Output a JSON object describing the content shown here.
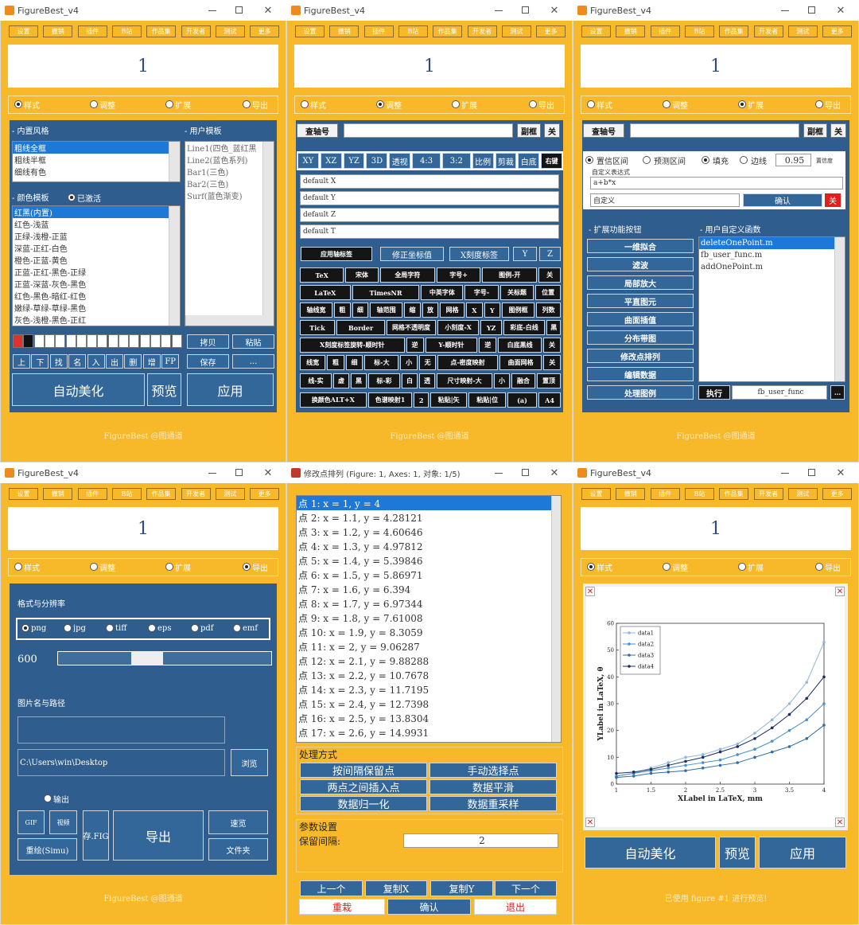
{
  "app_title": "FigureBest_v4",
  "toolbar": [
    "设置",
    "撤销",
    "插件",
    "B站",
    "作品集",
    "开发者",
    "测试",
    "更多"
  ],
  "display_value": "1",
  "tabs": [
    "样式",
    "调整",
    "扩展",
    "导出"
  ],
  "footer": "FigureBest @图通道",
  "style_panel": {
    "builtin_label": "- 内置风格",
    "builtin_styles": [
      "粗线全框",
      "粗线半框",
      "细线有色"
    ],
    "user_label": "- 用户模板",
    "user_templates": [
      "Line1(四色_蓝红黑",
      "Line2(蓝色系列)",
      "Bar1(三色)",
      "Bar2(三色)",
      "Surf(蓝色渐变)"
    ],
    "color_label": "- 颜色模板",
    "activated": "已激活",
    "color_templates": [
      "红黑(内置)",
      "红色-浅蓝",
      "正绿-浅橙-正蓝",
      "深蓝-正红-白色",
      "橙色-正蓝-黄色",
      "正蓝-正红-黑色-正绿",
      "正蓝-深蓝-灰色-黑色",
      "红色-黑色-暗红-红色",
      "嫩绿-草绿-草绿-黑色",
      "灰色-浅橙-黑色-正红"
    ],
    "list_buttons": [
      "上",
      "下",
      "找",
      "名",
      "入",
      "出",
      "删",
      "增",
      "FP"
    ],
    "side_buttons": [
      "拷贝",
      "粘贴",
      "保存",
      "..."
    ],
    "actions": [
      "自动美化",
      "预览",
      "应用"
    ]
  },
  "adjust_panel": {
    "axis_lookup": "查轴号",
    "sub_frame": "副框",
    "close": "关",
    "view_buttons": [
      "XY",
      "XZ",
      "YZ",
      "3D",
      "透视",
      "4:3",
      "3:2",
      "比例",
      "剪裁",
      "白底",
      "右键"
    ],
    "axis_labels": [
      "default X",
      "default Y",
      "default Z",
      "default T"
    ],
    "label_buttons": [
      "应用轴标签",
      "修正坐标值",
      "X刻度标签",
      "Y",
      "Z"
    ],
    "button_rows": [
      [
        "TeX",
        "宋体",
        "全局字符",
        "字号+",
        "图例-开",
        "关"
      ],
      [
        "LaTeX",
        "TimesNR",
        "中英字体",
        "字号-",
        "关标题",
        "位置"
      ],
      [
        "轴线宽",
        "粗",
        "细",
        "轴范围",
        "缩",
        "放",
        "网格",
        "X",
        "Y",
        "图例框",
        "列数"
      ],
      [
        "Tick",
        "Border",
        "网格不透明度",
        "小刻度-X",
        "YZ",
        "彩底-白线",
        "黑"
      ],
      [
        "X刻度标签旋转-顺时针",
        "逆",
        "Y-顺时针",
        "逆",
        "白底黑线",
        "关"
      ],
      [
        "线宽",
        "粗",
        "细",
        "标-大",
        "小",
        "无",
        "点-密度映射",
        "曲面网格",
        "关"
      ],
      [
        "线-实",
        "虚",
        "黑",
        "标-彩",
        "白",
        "透",
        "尺寸映射-大",
        "小",
        "融合",
        "置顶"
      ],
      [
        "换颜色ALT+X",
        "色谱映射1",
        "2",
        "粘贴|矢",
        "粘贴|位",
        "(a)",
        "A4"
      ]
    ]
  },
  "extend_panel": {
    "axis_lookup": "查轴号",
    "sub_frame": "副框",
    "close": "关",
    "band_options": [
      "置信区间",
      "预测区间",
      "填充",
      "边线"
    ],
    "confidence": "0.95",
    "confidence_label": "置信度",
    "expression_label": "自定义表达式",
    "expression": "a+b*x",
    "preset": "自定义",
    "confirm": "确认",
    "close_red": "关",
    "feature_label": "- 扩展功能按钮",
    "function_label": "- 用户自定义函数",
    "feature_buttons": [
      "一维拟合",
      "滤波",
      "局部放大",
      "平直图元",
      "曲面插值",
      "分布带图",
      "修改点排列",
      "编辑数据",
      "处理图例"
    ],
    "functions": [
      "deleteOnePoint.m",
      "fb_user_func.m",
      "addOnePoint.m"
    ],
    "run": "执行",
    "run_target": "fb_user_func",
    "more": "..."
  },
  "export_panel": {
    "format_label": "格式与分辨率",
    "formats": [
      "png",
      "jpg",
      "tiff",
      "eps",
      "pdf",
      "emf"
    ],
    "dpi": "600",
    "path_label": "图片名与路径",
    "path": "C:\\Users\\win\\Desktop",
    "browse": "浏览",
    "output": "输出",
    "buttons": [
      "GIF",
      "视频",
      "存.FIG",
      "导出",
      "速览",
      "重绘(Simu)",
      "文件夹"
    ]
  },
  "point_dialog": {
    "title": "修改点排列 (Figure: 1, Axes: 1, 对象: 1/5)",
    "points": [
      "点 1: x = 1, y = 4",
      "点 2: x = 1.1, y = 4.28121",
      "点 3: x = 1.2, y = 4.60646",
      "点 4: x = 1.3, y = 4.97812",
      "点 5: x = 1.4, y = 5.39846",
      "点 6: x = 1.5, y = 5.86971",
      "点 7: x = 1.6, y = 6.394",
      "点 8: x = 1.7, y = 6.97344",
      "点 9: x = 1.8, y = 7.61008",
      "点 10: x = 1.9, y = 8.3059",
      "点 11: x = 2, y = 9.06287",
      "点 12: x = 2.1, y = 9.88288",
      "点 13: x = 2.2, y = 10.7678",
      "点 14: x = 2.3, y = 11.7195",
      "点 15: x = 2.4, y = 12.7398",
      "点 16: x = 2.5, y = 13.8304",
      "点 17: x = 2.6, y = 14.9931"
    ],
    "method_label": "处理方式",
    "methods": [
      "按间隔保留点",
      "手动选择点",
      "两点之间插入点",
      "数据平滑",
      "数据归一化",
      "数据重采样"
    ],
    "param_label": "参数设置",
    "interval_label": "保留间隔:",
    "interval": "2",
    "nav": [
      "上一个",
      "复制X",
      "复制Y",
      "下一个"
    ],
    "actions": [
      "重栽",
      "确认",
      "退出"
    ]
  },
  "preview_panel": {
    "actions": [
      "自动美化",
      "预览",
      "应用"
    ],
    "status": "已使用 figure #1 进行预览!",
    "chart_data": {
      "type": "line",
      "xlabel": "XLabel in LaTeX, mm",
      "ylabel": "YLabel in LaTeX, θ",
      "x": [
        1,
        1.25,
        1.5,
        1.75,
        2,
        2.25,
        2.5,
        2.75,
        3,
        3.25,
        3.5,
        3.75,
        4
      ],
      "series": [
        {
          "name": "data1",
          "color": "#8fb8dc",
          "values": [
            3,
            4,
            6,
            8,
            10,
            11,
            13,
            15,
            19,
            24,
            30,
            38,
            53
          ]
        },
        {
          "name": "data2",
          "color": "#4a90c4",
          "values": [
            3,
            4,
            5,
            6,
            7,
            8,
            9,
            11,
            13,
            16,
            20,
            24,
            30
          ]
        },
        {
          "name": "data3",
          "color": "#2f6ea6",
          "values": [
            2.5,
            3,
            4,
            4.5,
            5,
            6,
            7,
            8,
            10,
            12,
            14,
            17,
            22
          ]
        },
        {
          "name": "data4",
          "color": "#1b2c66",
          "values": [
            4,
            4.5,
            5.5,
            7,
            8.5,
            10,
            12,
            14,
            17,
            21,
            26,
            32,
            40
          ]
        }
      ],
      "xlim": [
        1,
        4
      ],
      "ylim": [
        0,
        60
      ],
      "xticks": [
        1,
        1.5,
        2,
        2.5,
        3,
        3.5,
        4
      ],
      "yticks": [
        0,
        10,
        20,
        30,
        40,
        50,
        60
      ]
    }
  }
}
